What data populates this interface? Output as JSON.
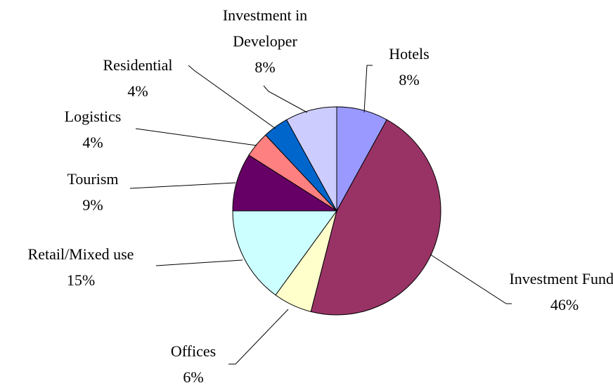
{
  "chart_data": {
    "type": "pie",
    "categories": [
      "Hotels",
      "Investment Funds",
      "Offices",
      "Retail/Mixed use",
      "Tourism",
      "Logistics",
      "Residential",
      "Investment in Developer"
    ],
    "values": [
      8,
      46,
      6,
      15,
      9,
      4,
      4,
      8
    ],
    "value_labels": [
      "8%",
      "46%",
      "6%",
      "15%",
      "9%",
      "4%",
      "4%",
      "8%"
    ],
    "colors": [
      "#9999ff",
      "#993366",
      "#ffffcc",
      "#ccffff",
      "#660066",
      "#ff8080",
      "#0066cc",
      "#ccccff"
    ]
  }
}
